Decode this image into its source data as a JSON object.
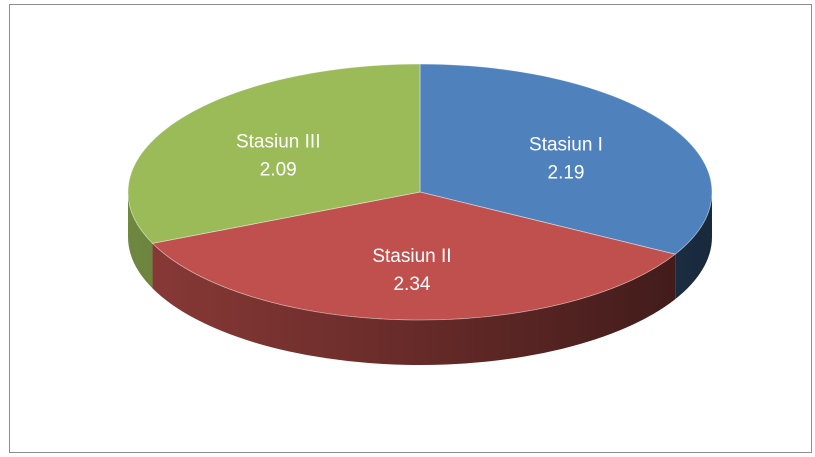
{
  "chart_data": {
    "type": "pie",
    "title": "",
    "legend": "none",
    "labels": [
      "Stasiun I",
      "Stasiun II",
      "Stasiun III"
    ],
    "values": [
      2.19,
      2.34,
      2.09
    ],
    "value_labels": [
      "2.19",
      "2.34",
      "2.09"
    ],
    "colors": [
      "#4f81bd",
      "#c0504d",
      "#9bbb59"
    ],
    "style": "3d"
  }
}
